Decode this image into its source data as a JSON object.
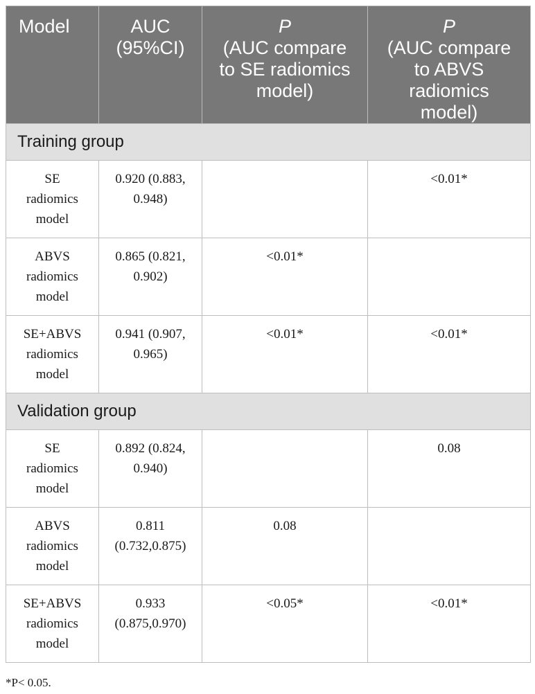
{
  "header": {
    "model": "Model",
    "auc_line1": "AUC",
    "auc_line2": "(95%CI)",
    "p1_symbol": "P",
    "p1_line1": "(AUC compare",
    "p1_line2": "to SE radiomics",
    "p1_line3": "model)",
    "p2_symbol": "P",
    "p2_line1": "(AUC compare",
    "p2_line2": "to ABVS",
    "p2_line3": "radiomics",
    "p2_line4": "model)"
  },
  "groups": [
    {
      "title": "Training group",
      "rows": [
        {
          "model": [
            "SE",
            "radiomics",
            "model"
          ],
          "auc": [
            "0.920 (0.883,",
            "0.948)"
          ],
          "p_se": "",
          "p_abvs": "<0.01*"
        },
        {
          "model": [
            "ABVS",
            "radiomics",
            "model"
          ],
          "auc": [
            "0.865 (0.821,",
            "0.902)"
          ],
          "p_se": "<0.01*",
          "p_abvs": ""
        },
        {
          "model": [
            "SE+ABVS",
            "radiomics",
            "model"
          ],
          "auc": [
            "0.941 (0.907,",
            "0.965)"
          ],
          "p_se": "<0.01*",
          "p_abvs": "<0.01*"
        }
      ]
    },
    {
      "title": "Validation group",
      "rows": [
        {
          "model": [
            "SE",
            "radiomics",
            "model"
          ],
          "auc": [
            "0.892 (0.824,",
            "0.940)"
          ],
          "p_se": "",
          "p_abvs": "0.08"
        },
        {
          "model": [
            "ABVS",
            "radiomics",
            "model"
          ],
          "auc": [
            "0.811",
            "(0.732,0.875)"
          ],
          "p_se": "0.08",
          "p_abvs": ""
        },
        {
          "model": [
            "SE+ABVS",
            "radiomics",
            "model"
          ],
          "auc": [
            "0.933",
            "(0.875,0.970)"
          ],
          "p_se": "<0.05*",
          "p_abvs": "<0.01*"
        }
      ]
    }
  ],
  "footnote": "*P< 0.05."
}
